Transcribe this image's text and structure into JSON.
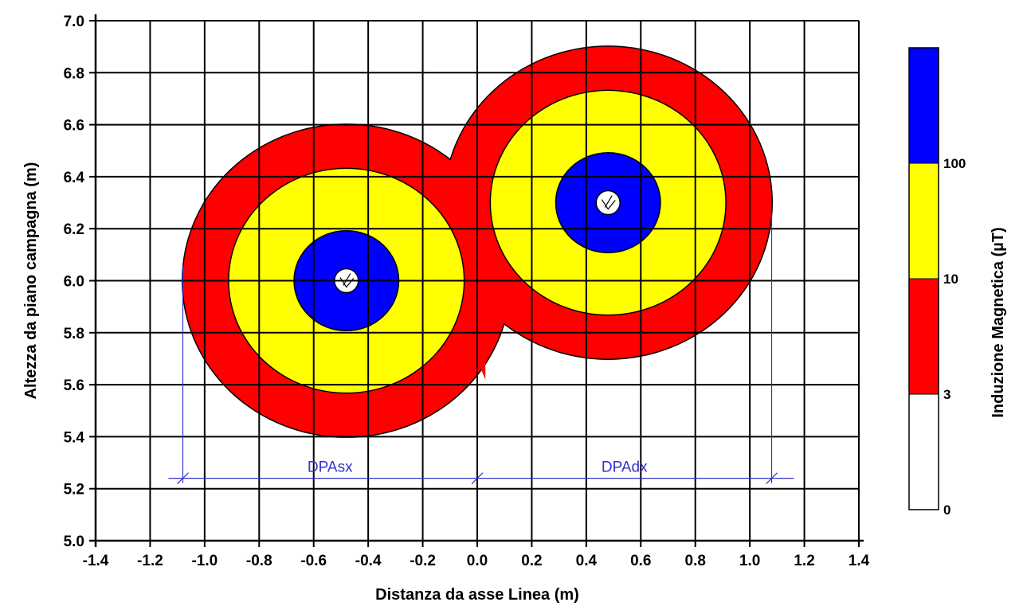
{
  "chart_data": {
    "type": "heatmap",
    "title": "",
    "xlabel": "Distanza da asse Linea (m)",
    "ylabel": "Altezza da piano campagna (m)",
    "xlim": [
      -1.4,
      1.4
    ],
    "ylim": [
      5.0,
      7.0
    ],
    "xticks": [
      "-1.4",
      "-1.2",
      "-1.0",
      "-0.8",
      "-0.6",
      "-0.4",
      "-0.2",
      "0.0",
      "0.2",
      "0.4",
      "0.6",
      "0.8",
      "1.0",
      "1.2",
      "1.4"
    ],
    "yticks": [
      "5.0",
      "5.2",
      "5.4",
      "5.6",
      "5.8",
      "6.0",
      "6.2",
      "6.4",
      "6.6",
      "6.8",
      "7.0"
    ],
    "grid": true,
    "conductors": [
      {
        "x": -0.48,
        "y": 6.0
      },
      {
        "x": 0.48,
        "y": 6.3
      }
    ],
    "contour_levels": [
      {
        "level": 3,
        "color": "#ff0000",
        "circles": [
          {
            "cx": -0.48,
            "cy": 6.0,
            "r": 0.6
          },
          {
            "cx": 0.48,
            "cy": 6.3,
            "r": 0.6
          }
        ]
      },
      {
        "level": 10,
        "color": "#ffff00",
        "circles": [
          {
            "cx": -0.48,
            "cy": 6.0,
            "r": 0.43
          },
          {
            "cx": 0.48,
            "cy": 6.3,
            "r": 0.43
          }
        ]
      },
      {
        "level": 100,
        "color": "#0000ff",
        "circles": [
          {
            "cx": -0.48,
            "cy": 6.0,
            "r": 0.19
          },
          {
            "cx": 0.48,
            "cy": 6.3,
            "r": 0.19
          }
        ]
      }
    ],
    "dpa": {
      "y": 5.24,
      "left_x": -1.08,
      "center_x": 0.0,
      "right_x": 1.08,
      "left_label": "DPAsx",
      "right_label": "DPAdx",
      "line_color": "#3333cc"
    },
    "colorbar": {
      "title": "Induzione Magnetica (µT)",
      "levels": [
        "0",
        "3",
        "10",
        "100"
      ],
      "bands": [
        {
          "from": "0",
          "to": "3",
          "color": "#ffffff"
        },
        {
          "from": "3",
          "to": "10",
          "color": "#ff0000"
        },
        {
          "from": "10",
          "to": "100",
          "color": "#ffff00"
        },
        {
          "from": "100",
          "to": "",
          "color": "#0000ff"
        }
      ]
    }
  }
}
